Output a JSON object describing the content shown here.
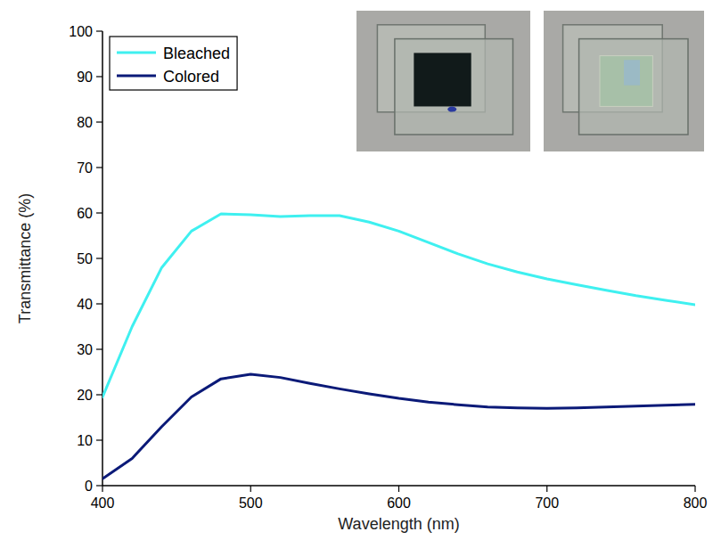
{
  "chart_data": {
    "type": "line",
    "x_label": "Wavelength (nm)",
    "y_label": "Transmittance (%)",
    "x": [
      400,
      420,
      440,
      460,
      480,
      500,
      520,
      540,
      560,
      580,
      600,
      620,
      640,
      660,
      680,
      700,
      720,
      740,
      760,
      780,
      800
    ],
    "series": [
      {
        "name": "Bleached",
        "color": "#3ff0f0",
        "values": [
          19.5,
          35,
          48,
          56,
          59.8,
          59.6,
          59.2,
          59.4,
          59.4,
          58,
          56,
          53.5,
          51,
          48.8,
          47,
          45.5,
          44.2,
          43,
          41.8,
          40.8,
          39.8
        ]
      },
      {
        "name": "Colored",
        "color": "#0b1a78",
        "values": [
          1.5,
          6,
          13,
          19.5,
          23.5,
          24.5,
          23.8,
          22.5,
          21.3,
          20.2,
          19.2,
          18.4,
          17.8,
          17.3,
          17.1,
          17,
          17.1,
          17.3,
          17.5,
          17.7,
          17.9
        ]
      }
    ],
    "xlim": [
      400,
      800
    ],
    "xticks": [
      400,
      500,
      600,
      700,
      800
    ],
    "ylim": [
      0,
      100
    ],
    "yticks": [
      0,
      10,
      20,
      30,
      40,
      50,
      60,
      70,
      80,
      90,
      100
    ],
    "legend": "top-left",
    "grid": false
  }
}
